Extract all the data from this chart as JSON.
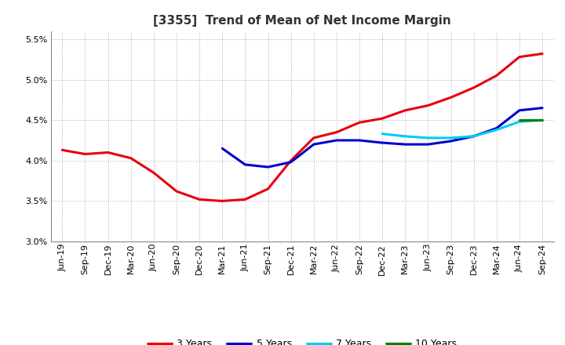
{
  "title": "[3355]  Trend of Mean of Net Income Margin",
  "ylim": [
    0.03,
    0.056
  ],
  "yticks": [
    0.03,
    0.035,
    0.04,
    0.045,
    0.05,
    0.055
  ],
  "ytick_labels": [
    "3.0%",
    "3.5%",
    "4.0%",
    "4.5%",
    "5.0%",
    "5.5%"
  ],
  "x_labels": [
    "Jun-19",
    "Sep-19",
    "Dec-19",
    "Mar-20",
    "Jun-20",
    "Sep-20",
    "Dec-20",
    "Mar-21",
    "Jun-21",
    "Sep-21",
    "Dec-21",
    "Mar-22",
    "Jun-22",
    "Sep-22",
    "Dec-22",
    "Mar-23",
    "Jun-23",
    "Sep-23",
    "Dec-23",
    "Mar-24",
    "Jun-24",
    "Sep-24"
  ],
  "series_3y": [
    0.0413,
    0.0408,
    0.041,
    0.0403,
    0.0385,
    0.0362,
    0.0352,
    0.035,
    0.0352,
    0.0365,
    0.04,
    0.0428,
    0.0435,
    0.0447,
    0.0452,
    0.0462,
    0.0468,
    0.0478,
    0.049,
    0.0505,
    0.0528,
    0.0532
  ],
  "series_5y": [
    null,
    null,
    null,
    null,
    null,
    null,
    null,
    0.0415,
    0.0395,
    0.0392,
    0.0398,
    0.042,
    0.0425,
    0.0425,
    0.0422,
    0.042,
    0.042,
    0.0424,
    0.043,
    0.044,
    0.0462,
    0.0465
  ],
  "series_7y": [
    null,
    null,
    null,
    null,
    null,
    null,
    null,
    null,
    null,
    null,
    null,
    null,
    null,
    null,
    0.0433,
    0.043,
    0.0428,
    0.0428,
    0.043,
    0.0438,
    0.0448,
    0.045
  ],
  "series_10y": [
    null,
    null,
    null,
    null,
    null,
    null,
    null,
    null,
    null,
    null,
    null,
    null,
    null,
    null,
    null,
    null,
    null,
    null,
    null,
    null,
    0.045,
    0.045
  ],
  "color_3y": "#e8000d",
  "color_5y": "#0000cd",
  "color_7y": "#00ccee",
  "color_10y": "#008000",
  "legend_labels": [
    "3 Years",
    "5 Years",
    "7 Years",
    "10 Years"
  ],
  "background_color": "#ffffff",
  "grid_color": "#aaaaaa",
  "title_fontsize": 11,
  "tick_fontsize": 8,
  "linewidth": 2.2
}
